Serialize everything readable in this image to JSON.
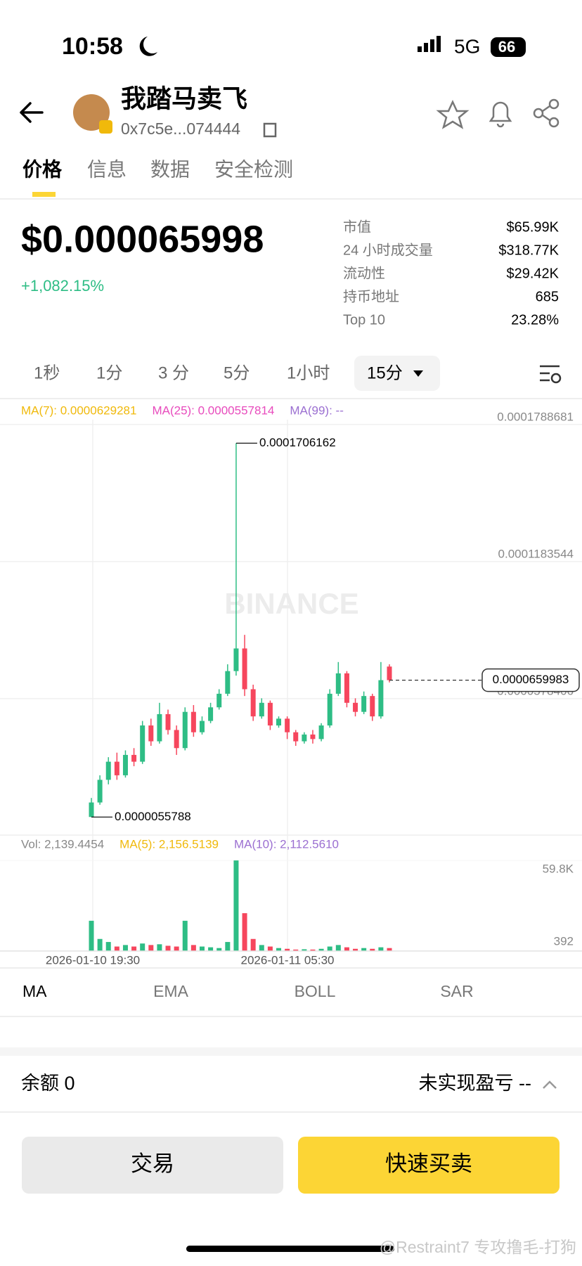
{
  "status": {
    "time": "10:58",
    "network": "5G",
    "battery": "66"
  },
  "header": {
    "title": "我踏马卖飞",
    "address": "0x7c5e...074444"
  },
  "tabs": [
    "价格",
    "信息",
    "数据",
    "安全检测"
  ],
  "price": {
    "value": "$0.000065998",
    "change": "+1,082.15%"
  },
  "stats": [
    {
      "label": "市值",
      "value": "$65.99K"
    },
    {
      "label": "24 小时成交量",
      "value": "$318.77K"
    },
    {
      "label": "流动性",
      "value": "$29.42K"
    },
    {
      "label": "持币地址",
      "value": "685"
    },
    {
      "label": "Top 10",
      "value": "23.28%"
    }
  ],
  "intervals": [
    "1秒",
    "1分",
    "3 分",
    "5分",
    "1小时",
    "15分"
  ],
  "chart_data": {
    "type": "candlestick",
    "up_color": "#2ebd85",
    "down_color": "#f6465d",
    "grid": true,
    "watermark": "BINANCE",
    "ma_legend": [
      {
        "text": "MA(7): 0.0000629281",
        "color": "#f0b90b"
      },
      {
        "text": "MA(25): 0.0000557814",
        "color": "#e84bbd"
      },
      {
        "text": "MA(99): --",
        "color": "#9b6fd1"
      }
    ],
    "open": [
      5.6e-06,
      1.2e-05,
      2.2e-05,
      3e-05,
      2.4e-05,
      3.3e-05,
      3e-05,
      4.6e-05,
      3.9e-05,
      5.1e-05,
      4.4e-05,
      3.6e-05,
      5.2e-05,
      4.3e-05,
      4.8e-05,
      5.4e-05,
      6e-05,
      7e-05,
      8e-05,
      6.2e-05,
      5e-05,
      5.6e-05,
      4.6e-05,
      4.9e-05,
      4.3e-05,
      3.9e-05,
      4.2e-05,
      4e-05,
      4.6e-05,
      6e-05,
      6.9e-05,
      5.6e-05,
      5.2e-05,
      5.9e-05,
      5e-05,
      7.2e-05
    ],
    "high": [
      1.4e-05,
      2.4e-05,
      3.2e-05,
      3.4e-05,
      3.5e-05,
      3.6e-05,
      4.8e-05,
      4.9e-05,
      5.6e-05,
      5.3e-05,
      4.6e-05,
      5.4e-05,
      5.5e-05,
      5e-05,
      5.6e-05,
      6.2e-05,
      7.3e-05,
      0.0001706162,
      8.6e-05,
      6.4e-05,
      5.8e-05,
      5.7e-05,
      5e-05,
      5e-05,
      4.4e-05,
      4.3e-05,
      4.4e-05,
      4.7e-05,
      6.2e-05,
      7.4e-05,
      7e-05,
      5.8e-05,
      6.1e-05,
      6e-05,
      7.4e-05,
      7.3e-05
    ],
    "low": [
      5.5788e-06,
      1.1e-05,
      2e-05,
      2.2e-05,
      2.3e-05,
      2.8e-05,
      2.9e-05,
      3.7e-05,
      3.8e-05,
      4.2e-05,
      3.3e-05,
      3.5e-05,
      4.1e-05,
      4.2e-05,
      4.7e-05,
      5.3e-05,
      5.9e-05,
      6.8e-05,
      5.9e-05,
      4.8e-05,
      4.9e-05,
      4.4e-05,
      4.5e-05,
      4e-05,
      3.7e-05,
      3.8e-05,
      3.8e-05,
      3.9e-05,
      4.5e-05,
      5.9e-05,
      5.4e-05,
      5e-05,
      5.1e-05,
      4.8e-05,
      4.9e-05,
      6.5e-05
    ],
    "close": [
      1.2e-05,
      2.2e-05,
      3e-05,
      2.4e-05,
      3.3e-05,
      3e-05,
      4.6e-05,
      3.9e-05,
      5.1e-05,
      4.4e-05,
      3.6e-05,
      5.2e-05,
      4.3e-05,
      4.8e-05,
      5.4e-05,
      6e-05,
      7e-05,
      8e-05,
      6.2e-05,
      5e-05,
      5.6e-05,
      4.6e-05,
      4.9e-05,
      4.3e-05,
      3.9e-05,
      4.2e-05,
      4e-05,
      4.6e-05,
      6e-05,
      6.9e-05,
      5.6e-05,
      5.2e-05,
      5.9e-05,
      5e-05,
      6.6e-05,
      6.59983e-05
    ],
    "ylim": [
      -2.4e-06,
      0.000181
    ],
    "yticks": [
      0.0001788681,
      0.0001183544,
      5.78406e-05
    ],
    "xlabels": [
      "2026-01-10 19:30",
      "2026-01-11 05:30"
    ],
    "volume": {
      "legend": [
        {
          "text": "Vol: 2,139.4454",
          "color": "#888888"
        },
        {
          "text": "MA(5): 2,156.5139",
          "color": "#f0b90b"
        },
        {
          "text": "MA(10): 2,112.5610",
          "color": "#9b6fd1"
        }
      ],
      "values": [
        20000,
        8000,
        6000,
        3000,
        4000,
        3000,
        5000,
        4000,
        4500,
        3500,
        3000,
        20000,
        4000,
        3000,
        2500,
        2000,
        6000,
        59800,
        25000,
        8000,
        4000,
        3000,
        2000,
        1500,
        1000,
        1200,
        1000,
        1500,
        3000,
        4000,
        2500,
        1500,
        2000,
        1500,
        2500,
        2000
      ],
      "ylim": [
        0,
        64000
      ],
      "yticks": [
        {
          "value": 59800,
          "label": "59.8K"
        },
        392
      ]
    }
  },
  "indicators": [
    "MA",
    "EMA",
    "BOLL",
    "SAR"
  ],
  "footer": {
    "balance": "余额 0",
    "pnl": "未实现盈亏 --"
  },
  "buttons": [
    "交易",
    "快速买卖"
  ],
  "watermark": "@Restraint7 专攻撸毛-打狗"
}
